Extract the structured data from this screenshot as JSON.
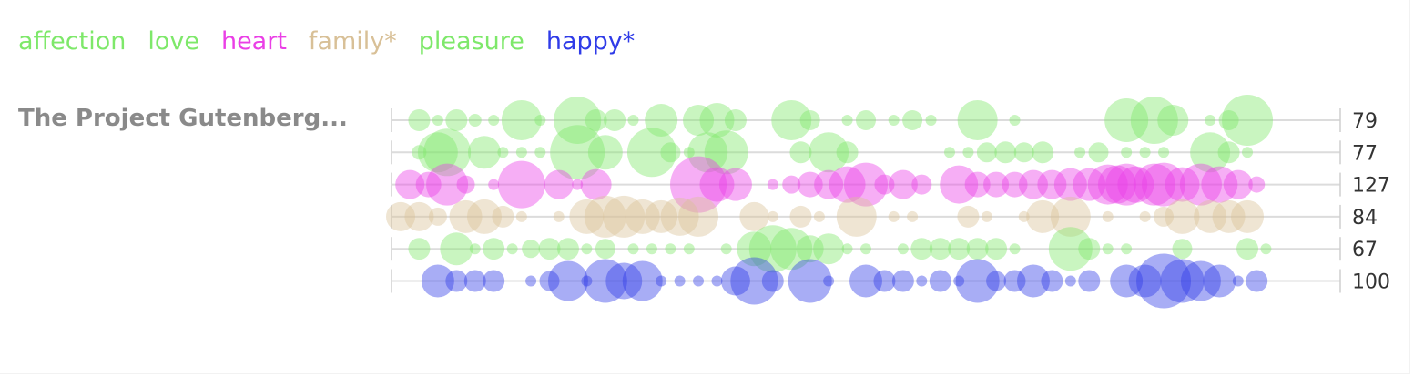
{
  "legend": [
    {
      "label": "affection",
      "color": "#7ee86a"
    },
    {
      "label": "love",
      "color": "#7ee86a"
    },
    {
      "label": "heart",
      "color": "#ea3fe6"
    },
    {
      "label": "family*",
      "color": "#d8c097"
    },
    {
      "label": "pleasure",
      "color": "#7ee86a"
    },
    {
      "label": "happy*",
      "color": "#2f3be8"
    }
  ],
  "document_title": "The Project Gutenberg...",
  "chart_data": {
    "type": "scatter",
    "title": "",
    "xlabel": "",
    "ylabel": "",
    "xlim": [
      0,
      100
    ],
    "grid": "horizontal",
    "series": [
      {
        "name": "affection",
        "color": "#7ee86a",
        "total": 79,
        "points": [
          [
            2,
            1.2
          ],
          [
            4,
            0.6
          ],
          [
            6,
            1.2
          ],
          [
            8,
            0.7
          ],
          [
            10,
            0.6
          ],
          [
            13,
            2.2
          ],
          [
            15,
            0.6
          ],
          [
            19,
            2.6
          ],
          [
            21,
            1.2
          ],
          [
            23,
            1.2
          ],
          [
            25,
            0.6
          ],
          [
            28,
            1.8
          ],
          [
            32,
            1.7
          ],
          [
            34,
            1.9
          ],
          [
            36,
            1.2
          ],
          [
            42,
            2.2
          ],
          [
            44,
            1.1
          ],
          [
            48,
            0.6
          ],
          [
            50,
            1.1
          ],
          [
            53,
            0.6
          ],
          [
            55,
            1.1
          ],
          [
            57,
            0.6
          ],
          [
            62,
            2.2
          ],
          [
            66,
            0.6
          ],
          [
            78,
            2.4
          ],
          [
            81,
            2.6
          ],
          [
            83,
            1.7
          ],
          [
            87,
            0.6
          ],
          [
            89,
            1.1
          ],
          [
            91,
            2.8
          ]
        ]
      },
      {
        "name": "love",
        "color": "#7ee86a",
        "total": 77,
        "points": [
          [
            2,
            0.8
          ],
          [
            4,
            2.2
          ],
          [
            5,
            2.6
          ],
          [
            9,
            1.8
          ],
          [
            11,
            0.6
          ],
          [
            13,
            0.6
          ],
          [
            15,
            0.6
          ],
          [
            19,
            3.0
          ],
          [
            22,
            1.9
          ],
          [
            27,
            2.7
          ],
          [
            29,
            1.1
          ],
          [
            31,
            0.6
          ],
          [
            33,
            2.2
          ],
          [
            35,
            2.4
          ],
          [
            43,
            1.2
          ],
          [
            46,
            2.2
          ],
          [
            48,
            1.2
          ],
          [
            59,
            0.6
          ],
          [
            61,
            0.6
          ],
          [
            63,
            1.1
          ],
          [
            65,
            1.2
          ],
          [
            67,
            1.1
          ],
          [
            69,
            1.2
          ],
          [
            73,
            0.6
          ],
          [
            75,
            1.1
          ],
          [
            78,
            0.6
          ],
          [
            80,
            0.6
          ],
          [
            82,
            0.6
          ],
          [
            87,
            2.2
          ],
          [
            89,
            1.2
          ],
          [
            91,
            0.6
          ]
        ]
      },
      {
        "name": "heart",
        "color": "#ea3fe6",
        "total": 127,
        "points": [
          [
            1,
            1.6
          ],
          [
            3,
            1.4
          ],
          [
            5,
            2.3
          ],
          [
            7,
            1.0
          ],
          [
            10,
            0.6
          ],
          [
            13,
            2.6
          ],
          [
            17,
            1.6
          ],
          [
            19,
            0.6
          ],
          [
            21,
            1.7
          ],
          [
            32,
            3.1
          ],
          [
            34,
            1.9
          ],
          [
            36,
            1.8
          ],
          [
            40,
            0.6
          ],
          [
            42,
            1.0
          ],
          [
            44,
            1.4
          ],
          [
            46,
            1.6
          ],
          [
            48,
            2.0
          ],
          [
            50,
            2.4
          ],
          [
            52,
            1.1
          ],
          [
            54,
            1.6
          ],
          [
            56,
            1.1
          ],
          [
            60,
            2.1
          ],
          [
            62,
            1.4
          ],
          [
            64,
            1.4
          ],
          [
            66,
            1.4
          ],
          [
            68,
            1.6
          ],
          [
            70,
            1.6
          ],
          [
            72,
            1.8
          ],
          [
            74,
            1.8
          ],
          [
            76,
            2.2
          ],
          [
            77,
            2.1
          ],
          [
            78,
            2.3
          ],
          [
            79,
            2.0
          ],
          [
            81,
            2.3
          ],
          [
            82,
            2.4
          ],
          [
            84,
            1.9
          ],
          [
            86,
            2.3
          ],
          [
            88,
            2.0
          ],
          [
            90,
            1.6
          ],
          [
            92,
            0.9
          ]
        ]
      },
      {
        "name": "family*",
        "color": "#d8c097",
        "total": 84,
        "points": [
          [
            0,
            1.6
          ],
          [
            2,
            1.6
          ],
          [
            4,
            1.0
          ],
          [
            7,
            1.8
          ],
          [
            9,
            1.9
          ],
          [
            11,
            1.2
          ],
          [
            13,
            0.6
          ],
          [
            17,
            0.6
          ],
          [
            20,
            1.9
          ],
          [
            22,
            2.3
          ],
          [
            24,
            2.3
          ],
          [
            26,
            1.9
          ],
          [
            28,
            1.8
          ],
          [
            30,
            2.1
          ],
          [
            32,
            2.2
          ],
          [
            38,
            1.6
          ],
          [
            40,
            0.6
          ],
          [
            43,
            1.2
          ],
          [
            45,
            0.6
          ],
          [
            49,
            2.2
          ],
          [
            53,
            0.6
          ],
          [
            55,
            0.6
          ],
          [
            61,
            1.2
          ],
          [
            63,
            0.6
          ],
          [
            67,
            0.6
          ],
          [
            69,
            1.8
          ],
          [
            72,
            2.2
          ],
          [
            76,
            0.6
          ],
          [
            80,
            0.6
          ],
          [
            82,
            1.1
          ],
          [
            84,
            1.9
          ],
          [
            87,
            1.8
          ],
          [
            89,
            1.8
          ],
          [
            91,
            1.8
          ]
        ]
      },
      {
        "name": "pleasure",
        "color": "#7ee86a",
        "total": 67,
        "points": [
          [
            2,
            1.2
          ],
          [
            6,
            1.8
          ],
          [
            8,
            0.6
          ],
          [
            10,
            1.2
          ],
          [
            12,
            0.6
          ],
          [
            14,
            1.0
          ],
          [
            16,
            1.2
          ],
          [
            18,
            1.2
          ],
          [
            20,
            0.6
          ],
          [
            22,
            1.1
          ],
          [
            25,
            0.6
          ],
          [
            27,
            0.6
          ],
          [
            29,
            0.6
          ],
          [
            31,
            0.6
          ],
          [
            35,
            0.6
          ],
          [
            38,
            1.9
          ],
          [
            40,
            2.6
          ],
          [
            42,
            2.3
          ],
          [
            44,
            1.5
          ],
          [
            46,
            1.7
          ],
          [
            48,
            0.6
          ],
          [
            50,
            0.6
          ],
          [
            54,
            0.6
          ],
          [
            56,
            1.2
          ],
          [
            58,
            1.2
          ],
          [
            60,
            1.2
          ],
          [
            62,
            1.2
          ],
          [
            64,
            1.2
          ],
          [
            66,
            0.6
          ],
          [
            72,
            2.4
          ],
          [
            74,
            1.2
          ],
          [
            76,
            0.6
          ],
          [
            78,
            0.6
          ],
          [
            84,
            1.1
          ],
          [
            91,
            1.2
          ],
          [
            93,
            0.6
          ]
        ]
      },
      {
        "name": "happy*",
        "color": "#2f3be8",
        "total": 100,
        "points": [
          [
            4,
            1.8
          ],
          [
            6,
            1.2
          ],
          [
            8,
            1.2
          ],
          [
            10,
            1.2
          ],
          [
            14,
            0.6
          ],
          [
            16,
            1.1
          ],
          [
            18,
            2.2
          ],
          [
            20,
            0.6
          ],
          [
            22,
            2.4
          ],
          [
            24,
            2.0
          ],
          [
            26,
            2.2
          ],
          [
            28,
            0.6
          ],
          [
            30,
            0.6
          ],
          [
            32,
            0.6
          ],
          [
            34,
            0.6
          ],
          [
            36,
            1.6
          ],
          [
            38,
            2.6
          ],
          [
            40,
            1.2
          ],
          [
            44,
            2.4
          ],
          [
            46,
            0.6
          ],
          [
            50,
            1.8
          ],
          [
            52,
            1.2
          ],
          [
            54,
            1.2
          ],
          [
            56,
            0.6
          ],
          [
            58,
            1.2
          ],
          [
            60,
            0.6
          ],
          [
            62,
            2.4
          ],
          [
            64,
            1.1
          ],
          [
            66,
            1.2
          ],
          [
            68,
            1.8
          ],
          [
            70,
            1.2
          ],
          [
            72,
            0.6
          ],
          [
            74,
            1.2
          ],
          [
            78,
            1.8
          ],
          [
            80,
            1.8
          ],
          [
            82,
            3.0
          ],
          [
            84,
            2.4
          ],
          [
            86,
            2.2
          ],
          [
            88,
            1.8
          ],
          [
            90,
            0.6
          ],
          [
            92,
            1.2
          ]
        ]
      }
    ]
  }
}
